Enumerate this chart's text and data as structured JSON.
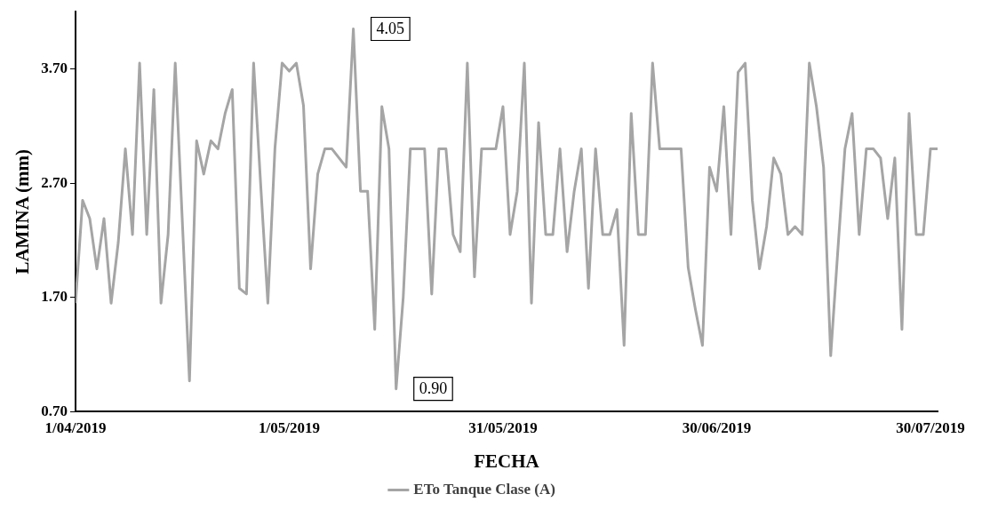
{
  "chart_data": {
    "type": "line",
    "xlabel": "FECHA",
    "ylabel": "LAMINA (mm)",
    "x": [
      "2019-04-01",
      "2019-04-02",
      "2019-04-03",
      "2019-04-04",
      "2019-04-05",
      "2019-04-06",
      "2019-04-07",
      "2019-04-08",
      "2019-04-09",
      "2019-04-10",
      "2019-04-11",
      "2019-04-12",
      "2019-04-13",
      "2019-04-14",
      "2019-04-15",
      "2019-04-16",
      "2019-04-17",
      "2019-04-18",
      "2019-04-19",
      "2019-04-20",
      "2019-04-21",
      "2019-04-22",
      "2019-04-23",
      "2019-04-24",
      "2019-04-25",
      "2019-04-26",
      "2019-04-27",
      "2019-04-28",
      "2019-04-29",
      "2019-04-30",
      "2019-05-01",
      "2019-05-02",
      "2019-05-03",
      "2019-05-04",
      "2019-05-05",
      "2019-05-06",
      "2019-05-07",
      "2019-05-08",
      "2019-05-09",
      "2019-05-10",
      "2019-05-11",
      "2019-05-12",
      "2019-05-13",
      "2019-05-14",
      "2019-05-15",
      "2019-05-16",
      "2019-05-17",
      "2019-05-18",
      "2019-05-19",
      "2019-05-20",
      "2019-05-21",
      "2019-05-22",
      "2019-05-23",
      "2019-05-24",
      "2019-05-25",
      "2019-05-26",
      "2019-05-27",
      "2019-05-28",
      "2019-05-29",
      "2019-05-30",
      "2019-05-31",
      "2019-06-01",
      "2019-06-02",
      "2019-06-03",
      "2019-06-04",
      "2019-06-05",
      "2019-06-06",
      "2019-06-07",
      "2019-06-08",
      "2019-06-09",
      "2019-06-10",
      "2019-06-11",
      "2019-06-12",
      "2019-06-13",
      "2019-06-14",
      "2019-06-15",
      "2019-06-16",
      "2019-06-17",
      "2019-06-18",
      "2019-06-19",
      "2019-06-20",
      "2019-06-21",
      "2019-06-22",
      "2019-06-23",
      "2019-06-24",
      "2019-06-25",
      "2019-06-26",
      "2019-06-27",
      "2019-06-28",
      "2019-06-29",
      "2019-06-30",
      "2019-07-01",
      "2019-07-02",
      "2019-07-03",
      "2019-07-04",
      "2019-07-05",
      "2019-07-06",
      "2019-07-07",
      "2019-07-08",
      "2019-07-09",
      "2019-07-10",
      "2019-07-11",
      "2019-07-12",
      "2019-07-13",
      "2019-07-14",
      "2019-07-15",
      "2019-07-16",
      "2019-07-17",
      "2019-07-18",
      "2019-07-19",
      "2019-07-20",
      "2019-07-21",
      "2019-07-22",
      "2019-07-23",
      "2019-07-24",
      "2019-07-25",
      "2019-07-26",
      "2019-07-27",
      "2019-07-28",
      "2019-07-29",
      "2019-07-30",
      "2019-07-31"
    ],
    "series": [
      {
        "name": "ETo Tanque Clase (A)",
        "color": "#a5a5a5",
        "values": [
          1.65,
          2.55,
          2.39,
          1.95,
          2.39,
          1.65,
          2.18,
          3.0,
          2.25,
          3.75,
          2.25,
          3.52,
          1.65,
          2.25,
          3.75,
          2.36,
          0.97,
          3.07,
          2.78,
          3.07,
          3.0,
          3.31,
          3.52,
          1.78,
          1.73,
          3.75,
          2.68,
          1.65,
          3.01,
          3.75,
          3.68,
          3.75,
          3.38,
          1.95,
          2.78,
          3.0,
          3.0,
          2.92,
          2.84,
          4.05,
          2.63,
          2.63,
          1.42,
          3.37,
          3.0,
          0.9,
          1.7,
          3.0,
          3.0,
          3.0,
          1.73,
          3.0,
          3.0,
          2.25,
          2.1,
          3.75,
          1.88,
          3.0,
          3.0,
          3.0,
          3.37,
          2.25,
          2.63,
          3.75,
          1.65,
          3.23,
          2.25,
          2.25,
          3.0,
          2.1,
          2.63,
          3.0,
          1.78,
          3.0,
          2.25,
          2.25,
          2.47,
          1.28,
          3.31,
          2.25,
          2.25,
          3.75,
          3.0,
          3.0,
          3.0,
          3.0,
          1.96,
          1.6,
          1.28,
          2.84,
          2.63,
          3.37,
          2.25,
          3.67,
          3.75,
          2.55,
          1.95,
          2.32,
          2.92,
          2.78,
          2.25,
          2.32,
          2.25,
          3.75,
          3.37,
          2.84,
          1.19,
          2.11,
          3.0,
          3.31,
          2.25,
          3.0,
          3.0,
          2.92,
          2.39,
          2.92,
          1.42,
          3.31,
          2.25,
          2.25,
          3.0,
          3.0
        ]
      }
    ],
    "xlim": [
      "2019-04-01",
      "2019-07-31"
    ],
    "xticks": [
      {
        "value": "2019-04-01",
        "label": "1/04/2019"
      },
      {
        "value": "2019-05-01",
        "label": "1/05/2019"
      },
      {
        "value": "2019-05-31",
        "label": "31/05/2019"
      },
      {
        "value": "2019-06-30",
        "label": "30/06/2019"
      },
      {
        "value": "2019-07-30",
        "label": "30/07/2019"
      }
    ],
    "ylim": [
      0.7,
      4.2
    ],
    "yticks": [
      {
        "value": 0.7,
        "label": "0.70"
      },
      {
        "value": 1.7,
        "label": "1.70"
      },
      {
        "value": 2.7,
        "label": "2.70"
      },
      {
        "value": 3.7,
        "label": "3.70"
      }
    ],
    "annotations": [
      {
        "text": "4.05",
        "x": "2019-05-10",
        "y": 4.05
      },
      {
        "text": "0.90",
        "x": "2019-05-16",
        "y": 0.9
      }
    ],
    "grid": false,
    "legend": "bottom",
    "marker": "none",
    "line_style": "solid"
  }
}
